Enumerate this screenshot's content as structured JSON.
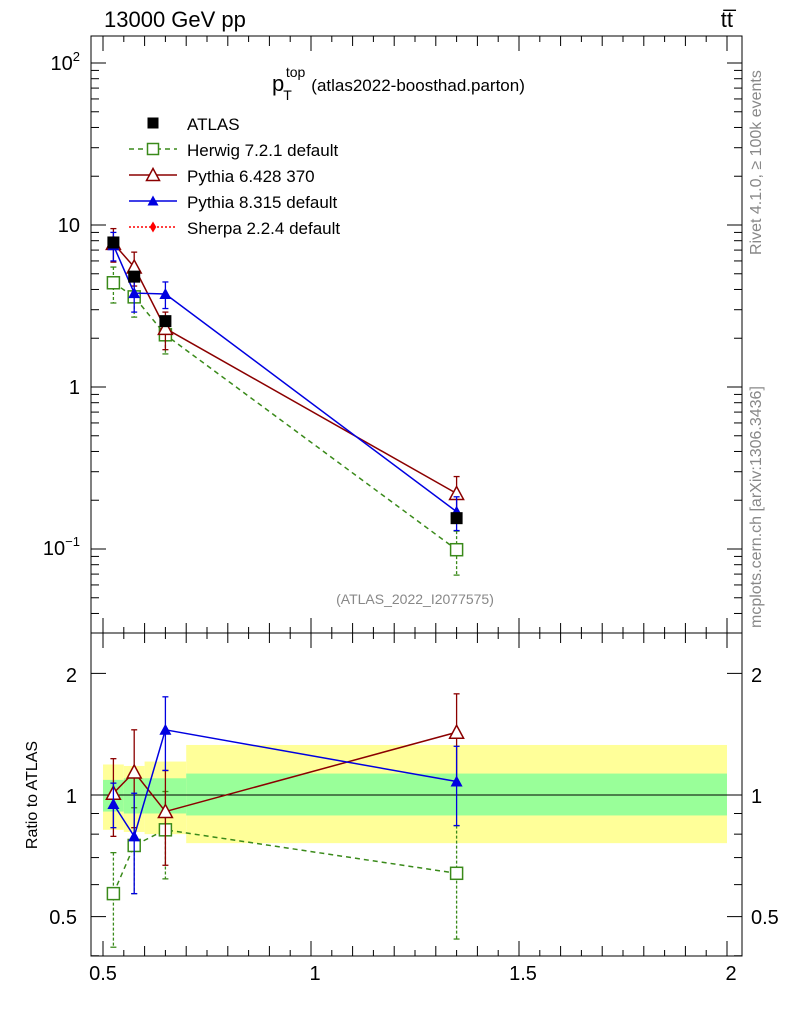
{
  "header": {
    "energy_label": "13000 GeV pp",
    "process_label": "tt̅"
  },
  "side_labels": {
    "rivet": "Rivet 4.1.0, ≥ 100k events",
    "mcplots": "mcplots.cern.ch [arXiv:1306.3436]"
  },
  "chart_data": {
    "type": "scatter",
    "title_main": "p",
    "title_sub": "T",
    "title_sup": "top",
    "title_rest": "(atlas2022-boosthad.parton)",
    "analysis_label": "(ATLAS_2022_I2077575)",
    "main_panel": {
      "yscale": "log",
      "ylim": [
        0.03,
        150
      ],
      "ytick_labels": [
        "10^-1",
        "1",
        "10",
        "10^2"
      ]
    },
    "ratio_panel": {
      "ylabel": "Ratio to ATLAS",
      "ylim": [
        0.4,
        2.4
      ],
      "yscale": "log",
      "ytick_labels": [
        "0.5",
        "1",
        "2"
      ]
    },
    "x_axis": {
      "xlim": [
        0.48,
        2.02
      ],
      "tick_labels": [
        "0.5",
        "1",
        "1.5",
        "2"
      ]
    },
    "reference_band_bins": [
      {
        "x0": 0.5,
        "x1": 0.55,
        "inner": [
          0.91,
          1.09
        ],
        "outer": [
          0.82,
          1.19
        ]
      },
      {
        "x0": 0.55,
        "x1": 0.6,
        "inner": [
          0.9,
          1.1
        ],
        "outer": [
          0.81,
          1.18
        ]
      },
      {
        "x0": 0.6,
        "x1": 0.7,
        "inner": [
          0.9,
          1.1
        ],
        "outer": [
          0.8,
          1.21
        ]
      },
      {
        "x0": 0.7,
        "x1": 2.0,
        "inner": [
          0.89,
          1.13
        ],
        "outer": [
          0.76,
          1.33
        ]
      }
    ],
    "series": [
      {
        "name": "ATLAS",
        "color": "#000000",
        "marker": "square-filled",
        "x": [
          0.525,
          0.575,
          0.65,
          1.35
        ],
        "y": [
          7.8,
          4.8,
          2.55,
          0.155
        ],
        "yerr": [
          0.15,
          0.1,
          0.06,
          0.01
        ],
        "ratio": [
          1,
          1,
          1,
          1
        ],
        "ratio_err": [
          0,
          0,
          0,
          0
        ]
      },
      {
        "name": "Herwig 7.2.1 default",
        "color": "#3a8a1a",
        "marker": "square-open",
        "line": "dashed",
        "x": [
          0.525,
          0.575,
          0.65,
          1.35
        ],
        "y": [
          4.4,
          3.6,
          2.1,
          0.099
        ],
        "yerr": [
          1.1,
          0.9,
          0.5,
          0.03
        ],
        "ratio": [
          0.57,
          0.75,
          0.82,
          0.64
        ],
        "ratio_err": [
          0.15,
          0.18,
          0.2,
          0.2
        ]
      },
      {
        "name": "Pythia 6.428 370",
        "color": "#8b0000",
        "marker": "triangle-open",
        "line": "solid",
        "x": [
          0.525,
          0.575,
          0.65,
          1.35
        ],
        "y": [
          7.7,
          5.5,
          2.3,
          0.22
        ],
        "yerr": [
          1.8,
          1.3,
          0.6,
          0.06
        ],
        "ratio": [
          1.01,
          1.14,
          0.91,
          1.43
        ],
        "ratio_err": [
          0.22,
          0.31,
          0.24,
          0.35
        ]
      },
      {
        "name": "Pythia 8.315 default",
        "color": "#0000e0",
        "marker": "triangle-filled",
        "line": "solid",
        "x": [
          0.525,
          0.575,
          0.65,
          1.35
        ],
        "y": [
          7.5,
          3.8,
          3.75,
          0.17
        ],
        "yerr": [
          1.5,
          0.9,
          0.7,
          0.04
        ],
        "ratio": [
          0.95,
          0.79,
          1.45,
          1.08
        ],
        "ratio_err": [
          0.12,
          0.22,
          0.3,
          0.24
        ]
      },
      {
        "name": "Sherpa 2.2.4 default",
        "color": "#ff0000",
        "marker": "diamond-filled",
        "line": "dotted",
        "x": [],
        "y": [],
        "yerr": [],
        "ratio": [],
        "ratio_err": []
      }
    ]
  }
}
